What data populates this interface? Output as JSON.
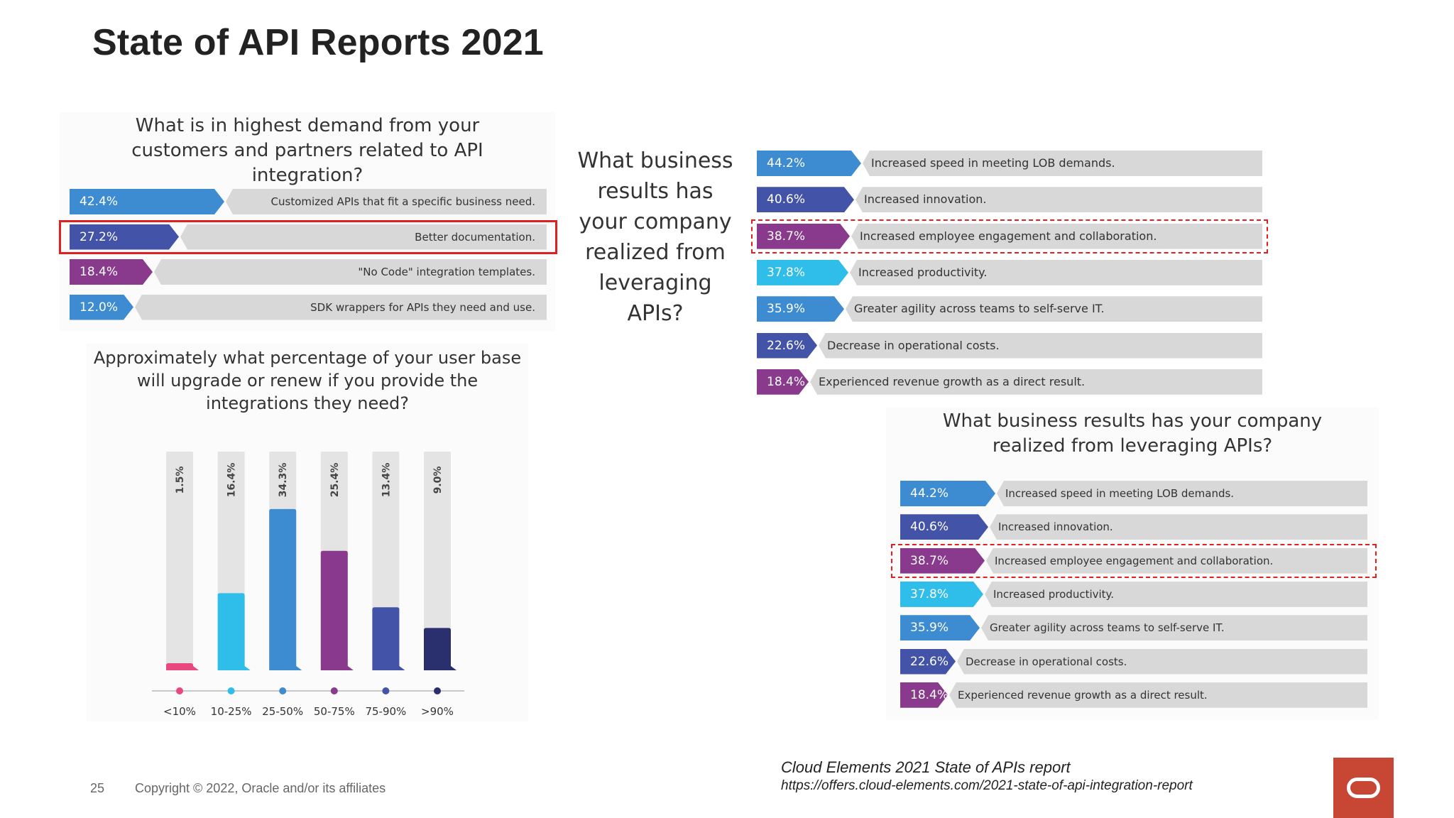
{
  "slide": {
    "title": "State of API Reports 2021",
    "page_number": "25",
    "copyright": "Copyright © 2022, Oracle and/or its affiliates",
    "source_title": "Cloud Elements 2021 State of APIs report",
    "source_url": "https://offers.cloud-elements.com/2021-state-of-api-integration-report"
  },
  "colors": {
    "blue": "#3d8bd0",
    "indigo": "#4353a8",
    "purple": "#8a3a8c",
    "cyan": "#2fbdea",
    "navy": "#2a2f6e",
    "pink": "#e9487f",
    "track": "#d8d8d8",
    "highlight": "#e02020",
    "oracle_red": "#c74634"
  },
  "chart_data": [
    {
      "type": "bar",
      "orientation": "horizontal",
      "title": "What is in highest demand from your customers and partners related to API integration?",
      "categories": [
        "Customized APIs that fit a specific business need.",
        "Better documentation.",
        "\"No Code\" integration templates.",
        "SDK wrappers for APIs they need and use."
      ],
      "values": [
        42.4,
        27.2,
        18.4,
        12.0
      ],
      "value_labels": [
        "42.4%",
        "27.2%",
        "18.4%",
        "12.0%"
      ],
      "colors": [
        "#3d8bd0",
        "#4353a8",
        "#8a3a8c",
        "#3d8bd0"
      ],
      "xlim": [
        0,
        100
      ],
      "highlighted_index": 1
    },
    {
      "type": "bar",
      "orientation": "vertical",
      "title": "Approximately what percentage of your user base will upgrade or renew if you provide the integrations they need?",
      "categories": [
        "<10%",
        "10-25%",
        "25-50%",
        "50-75%",
        "75-90%",
        ">90%"
      ],
      "values": [
        1.5,
        16.4,
        34.3,
        25.4,
        13.4,
        9.0
      ],
      "value_labels": [
        "1.5%",
        "16.4%",
        "34.3%",
        "25.4%",
        "13.4%",
        "9.0%"
      ],
      "colors": [
        "#e9487f",
        "#2fbdea",
        "#3d8bd0",
        "#8a3a8c",
        "#4353a8",
        "#2a2f6e"
      ],
      "ylim": [
        0,
        100
      ]
    },
    {
      "type": "bar",
      "orientation": "horizontal",
      "title": "What business results has your company realized from leveraging APIs?",
      "categories": [
        "Increased speed in meeting LOB demands.",
        "Increased innovation.",
        "Increased employee engagement and collaboration.",
        "Increased productivity.",
        "Greater agility across teams to self-serve IT.",
        "Decrease in operational costs.",
        "Experienced revenue growth as a direct result."
      ],
      "values": [
        44.2,
        40.6,
        38.7,
        37.8,
        35.9,
        22.6,
        18.4
      ],
      "value_labels": [
        "44.2%",
        "40.6%",
        "38.7%",
        "37.8%",
        "35.9%",
        "22.6%",
        "18.4%"
      ],
      "colors": [
        "#3d8bd0",
        "#4353a8",
        "#8a3a8c",
        "#2fbdea",
        "#3d8bd0",
        "#4353a8",
        "#8a3a8c"
      ],
      "xlim": [
        0,
        100
      ],
      "highlighted_index": 2
    },
    {
      "type": "bar",
      "orientation": "horizontal",
      "title": "What business results has your company realized from leveraging APIs?",
      "categories": [
        "Increased speed in meeting LOB demands.",
        "Increased innovation.",
        "Increased employee engagement and collaboration.",
        "Increased productivity.",
        "Greater agility across teams to self-serve IT.",
        "Decrease in operational costs.",
        "Experienced revenue growth as a direct result."
      ],
      "values": [
        44.2,
        40.6,
        38.7,
        37.8,
        35.9,
        22.6,
        18.4
      ],
      "value_labels": [
        "44.2%",
        "40.6%",
        "38.7%",
        "37.8%",
        "35.9%",
        "22.6%",
        "18.4%"
      ],
      "colors": [
        "#3d8bd0",
        "#4353a8",
        "#8a3a8c",
        "#2fbdea",
        "#3d8bd0",
        "#4353a8",
        "#8a3a8c"
      ],
      "xlim": [
        0,
        100
      ],
      "highlighted_index": 2
    }
  ]
}
